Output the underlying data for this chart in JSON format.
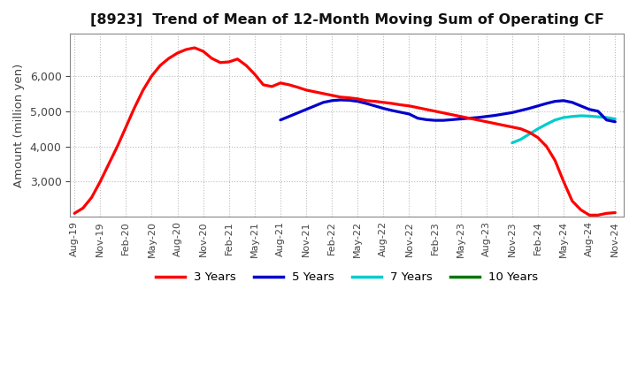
{
  "title": "[8923]  Trend of Mean of 12-Month Moving Sum of Operating CF",
  "ylabel": "Amount (million yen)",
  "ylim": [
    2000,
    7200
  ],
  "yticks": [
    3000,
    4000,
    5000,
    6000
  ],
  "background_color": "#ffffff",
  "grid_color": "#bbbbbb",
  "series": {
    "3yr": {
      "color": "#ff0000",
      "label": "3 Years",
      "x": [
        0,
        1,
        2,
        3,
        4,
        5,
        6,
        7,
        8,
        9,
        10,
        11,
        12,
        13,
        14,
        15,
        16,
        17,
        18,
        19,
        20,
        21,
        22,
        23,
        24,
        25,
        26,
        27,
        28,
        29,
        30,
        31,
        32,
        33,
        34,
        35,
        36,
        37,
        38,
        39,
        40,
        41,
        42,
        43,
        44,
        45,
        46,
        47,
        48,
        49,
        50,
        51,
        52,
        53,
        54,
        55,
        56,
        57,
        58,
        59,
        60,
        61,
        62,
        63
      ],
      "y": [
        2100,
        2250,
        2550,
        3000,
        3500,
        4000,
        4550,
        5100,
        5600,
        6000,
        6300,
        6500,
        6650,
        6750,
        6800,
        6700,
        6500,
        6380,
        6400,
        6480,
        6300,
        6050,
        5750,
        5700,
        5800,
        5750,
        5680,
        5600,
        5550,
        5500,
        5450,
        5400,
        5380,
        5350,
        5300,
        5280,
        5250,
        5220,
        5180,
        5150,
        5100,
        5050,
        5000,
        4950,
        4900,
        4850,
        4800,
        4750,
        4700,
        4650,
        4600,
        4550,
        4500,
        4400,
        4250,
        4000,
        3600,
        3000,
        2450,
        2200,
        2050,
        2050,
        2100,
        2120
      ]
    },
    "5yr": {
      "color": "#0000cc",
      "label": "5 Years",
      "x": [
        24,
        25,
        26,
        27,
        28,
        29,
        30,
        31,
        32,
        33,
        34,
        35,
        36,
        37,
        38,
        39,
        40,
        41,
        42,
        43,
        44,
        45,
        46,
        47,
        48,
        49,
        50,
        51,
        52,
        53,
        54,
        55,
        56,
        57,
        58,
        59,
        60,
        61,
        62,
        63
      ],
      "y": [
        4750,
        4850,
        4950,
        5050,
        5150,
        5250,
        5300,
        5320,
        5310,
        5280,
        5220,
        5150,
        5080,
        5020,
        4970,
        4920,
        4800,
        4760,
        4740,
        4740,
        4760,
        4780,
        4800,
        4820,
        4850,
        4880,
        4920,
        4960,
        5020,
        5080,
        5150,
        5220,
        5280,
        5300,
        5250,
        5150,
        5050,
        5000,
        4750,
        4700
      ]
    },
    "7yr": {
      "color": "#00cccc",
      "label": "7 Years",
      "x": [
        51,
        52,
        53,
        54,
        55,
        56,
        57,
        58,
        59,
        60,
        61,
        62,
        63
      ],
      "y": [
        4100,
        4200,
        4350,
        4500,
        4630,
        4750,
        4820,
        4850,
        4870,
        4860,
        4840,
        4820,
        4780
      ]
    },
    "10yr": {
      "color": "#007700",
      "label": "10 Years",
      "x": [],
      "y": []
    }
  },
  "xtick_labels": [
    "Aug-19",
    "Nov-19",
    "Feb-20",
    "May-20",
    "Aug-20",
    "Nov-20",
    "Feb-21",
    "May-21",
    "Aug-21",
    "Nov-21",
    "Feb-22",
    "May-22",
    "Aug-22",
    "Nov-22",
    "Feb-23",
    "May-23",
    "Aug-23",
    "Nov-23",
    "Feb-24",
    "May-24",
    "Aug-24",
    "Nov-24"
  ],
  "xtick_positions": [
    0,
    3,
    6,
    9,
    12,
    15,
    18,
    21,
    24,
    27,
    30,
    33,
    36,
    39,
    42,
    45,
    48,
    51,
    54,
    57,
    60,
    63
  ]
}
